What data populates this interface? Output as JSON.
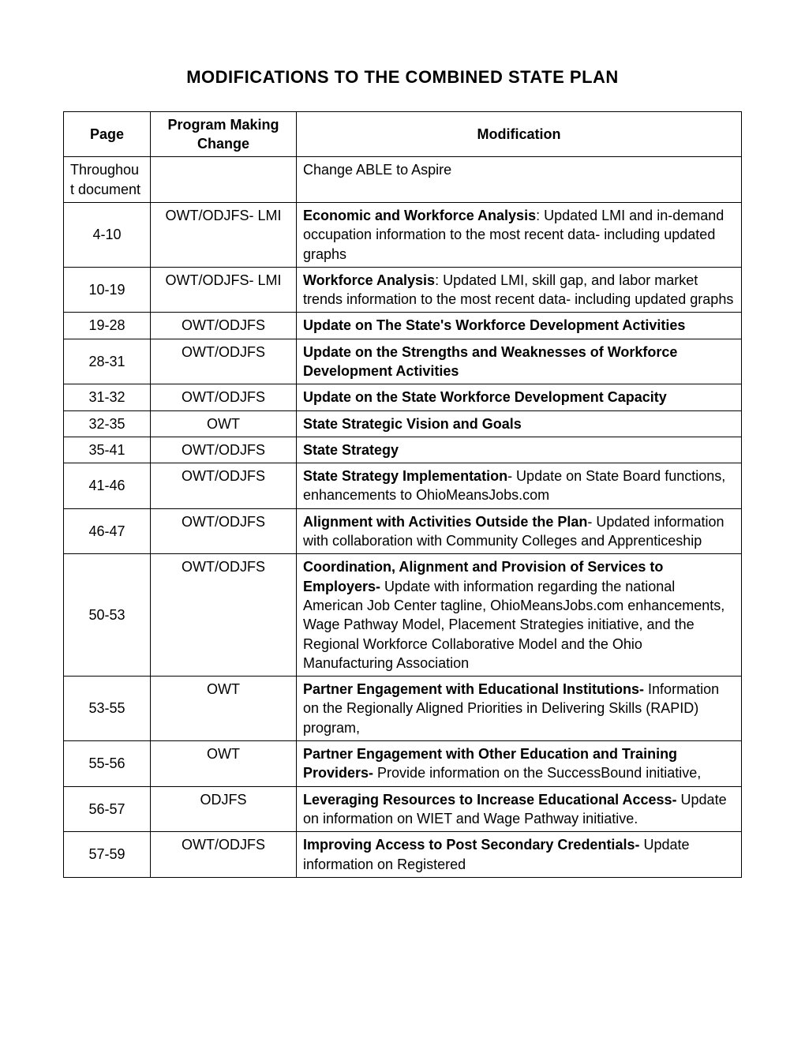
{
  "title": "MODIFICATIONS TO THE COMBINED STATE PLAN",
  "headers": {
    "page": "Page",
    "program": "Program Making Change",
    "modification": "Modification"
  },
  "rows": [
    {
      "page": "Throughou t document",
      "program": "",
      "mod_html": "Change ABLE to Aspire"
    },
    {
      "page": "4-10",
      "program": "OWT/ODJFS- LMI",
      "mod_html": "<span class=\"bold\">Economic and Workforce Analysis</span>:  Updated LMI and in-demand occupation information to the most recent data- including updated graphs"
    },
    {
      "page": "10-19",
      "program": "OWT/ODJFS- LMI",
      "mod_html": "<span class=\"bold\">Workforce Analysis</span>:  Updated LMI, skill gap, and labor market trends information to the most recent data- including updated graphs"
    },
    {
      "page": "19-28",
      "program": "OWT/ODJFS",
      "mod_html": "<span class=\"bold\">Update on The State's Workforce Development Activities</span>"
    },
    {
      "page": "28-31",
      "program": "OWT/ODJFS",
      "mod_html": "<span class=\"bold\">Update on the Strengths and Weaknesses of Workforce Development Activities</span>"
    },
    {
      "page": "31-32",
      "program": "OWT/ODJFS",
      "mod_html": "<span class=\"bold\">Update on the State Workforce Development Capacity</span>"
    },
    {
      "page": "32-35",
      "program": "OWT",
      "mod_html": "<span class=\"bold\">State Strategic Vision and Goals</span>"
    },
    {
      "page": "35-41",
      "program": "OWT/ODJFS",
      "mod_html": "<span class=\"bold\">State Strategy</span>"
    },
    {
      "page": "41-46",
      "program": "OWT/ODJFS",
      "mod_html": "<span class=\"bold\">State Strategy Implementation</span>- Update on State Board functions, enhancements to OhioMeansJobs.com"
    },
    {
      "page": "46-47",
      "program": "OWT/ODJFS",
      "mod_html": "<span class=\"bold\">Alignment with Activities Outside the Plan</span>- Updated information with collaboration with Community Colleges and Apprenticeship"
    },
    {
      "page": "50-53",
      "program": "OWT/ODJFS",
      "mod_html": "<span class=\"bold\">Coordination, Alignment and Provision of Services to Employers- </span>Update with information regarding the national American Job Center tagline, OhioMeansJobs.com enhancements, Wage Pathway Model, Placement Strategies initiative, and the Regional Workforce Collaborative Model and the Ohio Manufacturing Association"
    },
    {
      "page": "53-55",
      "program": "OWT",
      "mod_html": "<span class=\"bold\">Partner Engagement with Educational Institutions- </span>Information on the Regionally Aligned Priorities in Delivering Skills (RAPID) program,"
    },
    {
      "page": "55-56",
      "program": "OWT",
      "mod_html": "<span class=\"bold\">Partner Engagement with Other Education and Training Providers- </span>Provide information on the SuccessBound initiative,"
    },
    {
      "page": "56-57",
      "program": "ODJFS",
      "mod_html": "<span class=\"bold\">Leveraging Resources to Increase Educational Access- </span>Update on information on WIET and Wage Pathway initiative."
    },
    {
      "page": "57-59",
      "program": "OWT/ODJFS",
      "mod_html": "<span class=\"bold\">Improving Access to Post Secondary Credentials- </span>Update information on Registered"
    }
  ]
}
